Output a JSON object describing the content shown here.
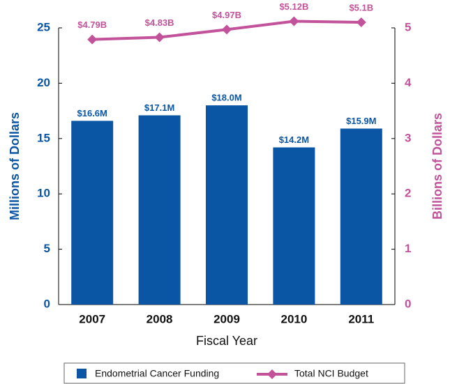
{
  "chart_data": {
    "type": "bar",
    "categories": [
      "2007",
      "2008",
      "2009",
      "2010",
      "2011"
    ],
    "xlabel": "Fiscal Year",
    "ylabel": "Millions of Dollars",
    "y2label": "Billions of Dollars",
    "ylim": [
      0,
      25
    ],
    "yticks": [
      0,
      5,
      10,
      15,
      20,
      25
    ],
    "y2lim": [
      0,
      5
    ],
    "y2ticks": [
      0,
      1,
      2,
      3,
      4,
      5
    ],
    "series": [
      {
        "name": "Endometrial Cancer Funding",
        "type": "bar",
        "color": "#0b56a4",
        "values": [
          16.6,
          17.1,
          18.0,
          14.2,
          15.9
        ],
        "value_labels": [
          "$16.6M",
          "$17.1M",
          "$18.0M",
          "$14.2M",
          "$15.9M"
        ]
      },
      {
        "name": "Total NCI Budget",
        "type": "line",
        "axis": "y2",
        "color": "#c2529a",
        "values": [
          4.79,
          4.83,
          4.97,
          5.12,
          5.1
        ],
        "value_labels": [
          "$4.79B",
          "$4.83B",
          "$4.97B",
          "$5.12B",
          "$5.1B"
        ]
      }
    ]
  }
}
